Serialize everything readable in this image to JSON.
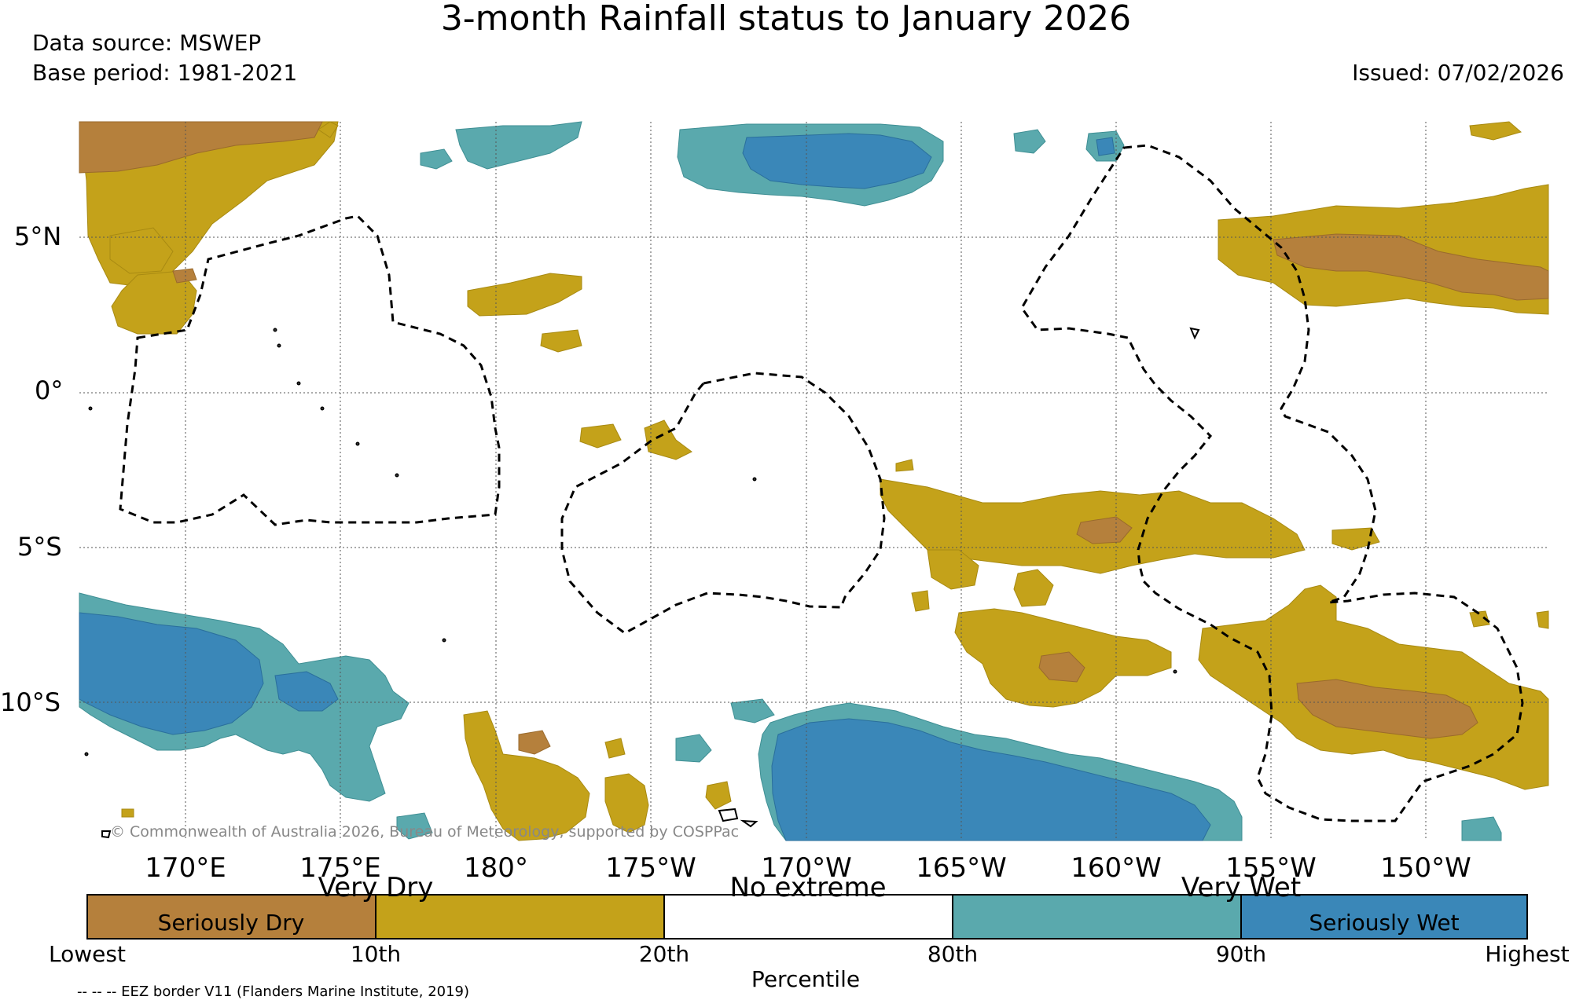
{
  "title": "3-month Rainfall status to January 2026",
  "data_source": "Data source: MSWEP",
  "base_period": "Base period: 1981-2021",
  "issued": "Issued: 07/02/2026",
  "copyright": "© Commonwealth of Australia 2026, Bureau of Meteorology, supported by COSPPac",
  "eez_note": "-- -- -- EEZ border V11 (Flanders Marine Institute, 2019)",
  "latitude_labels": [
    "5°N",
    "0°",
    "5°S",
    "10°S"
  ],
  "longitude_labels": [
    "170°E",
    "175°E",
    "180°",
    "175°W",
    "170°W",
    "165°W",
    "160°W",
    "155°W",
    "150°W"
  ],
  "legend": {
    "category_labels": [
      "Very Dry",
      "No extreme",
      "Very Wet"
    ],
    "inner_labels": [
      "Seriously Dry",
      "Seriously Wet"
    ],
    "tick_labels": [
      "Lowest",
      "10th",
      "20th",
      "80th",
      "90th",
      "Highest"
    ],
    "axis_title": "Percentile",
    "segments": [
      {
        "name": "Seriously Dry",
        "range": "Lowest-10th",
        "color": "#b5803c"
      },
      {
        "name": "Very Dry",
        "range": "10th-20th",
        "color": "#c4a21a"
      },
      {
        "name": "No extreme",
        "range": "20th-80th",
        "color": "#ffffff"
      },
      {
        "name": "Very Wet",
        "range": "80th-90th",
        "color": "#5aa9ad"
      },
      {
        "name": "Seriously Wet",
        "range": "90th-Highest",
        "color": "#3a87b8"
      }
    ]
  },
  "colors": {
    "seriously_dry": "#b5803c",
    "very_dry": "#c4a21a",
    "no_extreme": "#ffffff",
    "very_wet": "#5aa9ad",
    "seriously_wet": "#3a87b8"
  }
}
